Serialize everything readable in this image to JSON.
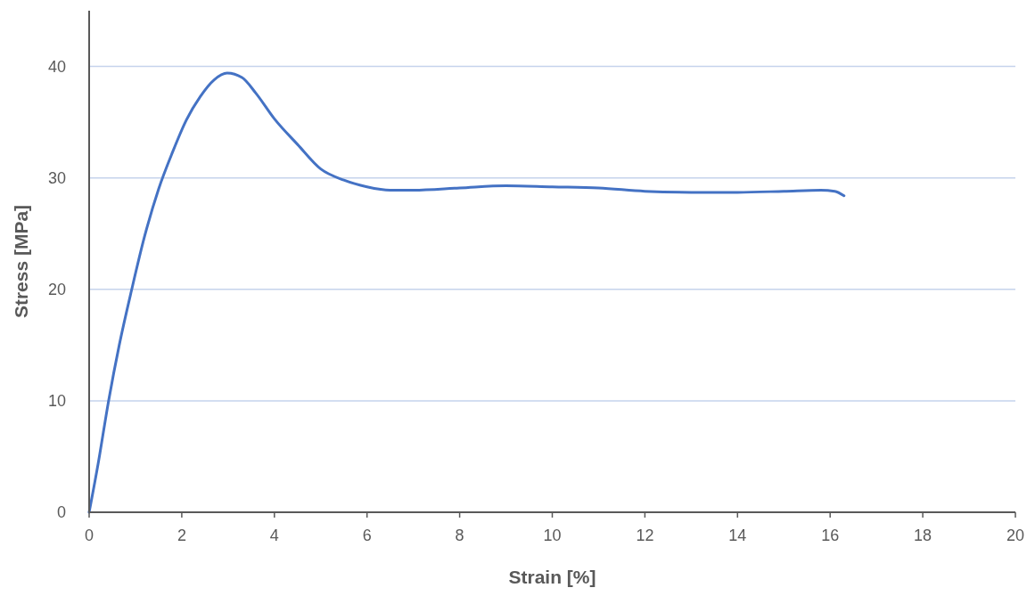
{
  "chart_data": {
    "type": "line",
    "xlabel": "Strain [%]",
    "ylabel": "Stress [MPa]",
    "xlim": [
      0,
      20
    ],
    "xticks": [
      0,
      2,
      4,
      6,
      8,
      10,
      12,
      14,
      16,
      18,
      20
    ],
    "ylim": [
      0,
      45
    ],
    "yticks": [
      0,
      10,
      20,
      30,
      40
    ],
    "grid": "y",
    "marker": "none",
    "series": [
      {
        "color": "#4472c4",
        "x": [
          0,
          0.2,
          0.42,
          0.65,
          0.92,
          1.2,
          1.5,
          1.8,
          2.1,
          2.4,
          2.7,
          2.98,
          3.3,
          3.6,
          4.0,
          4.5,
          5.0,
          5.5,
          6.0,
          6.5,
          7.0,
          8.0,
          9.0,
          10.0,
          11.0,
          12.0,
          13.0,
          14.0,
          15.0,
          15.8,
          16.1,
          16.3
        ],
        "values": [
          0,
          4.5,
          10,
          15,
          20,
          24.8,
          29,
          32.3,
          35.2,
          37.3,
          38.8,
          39.4,
          39,
          37.6,
          35.3,
          33,
          30.8,
          29.8,
          29.2,
          28.9,
          28.9,
          29.1,
          29.3,
          29.2,
          29.1,
          28.8,
          28.7,
          28.7,
          28.8,
          28.9,
          28.8,
          28.4
        ]
      }
    ]
  }
}
